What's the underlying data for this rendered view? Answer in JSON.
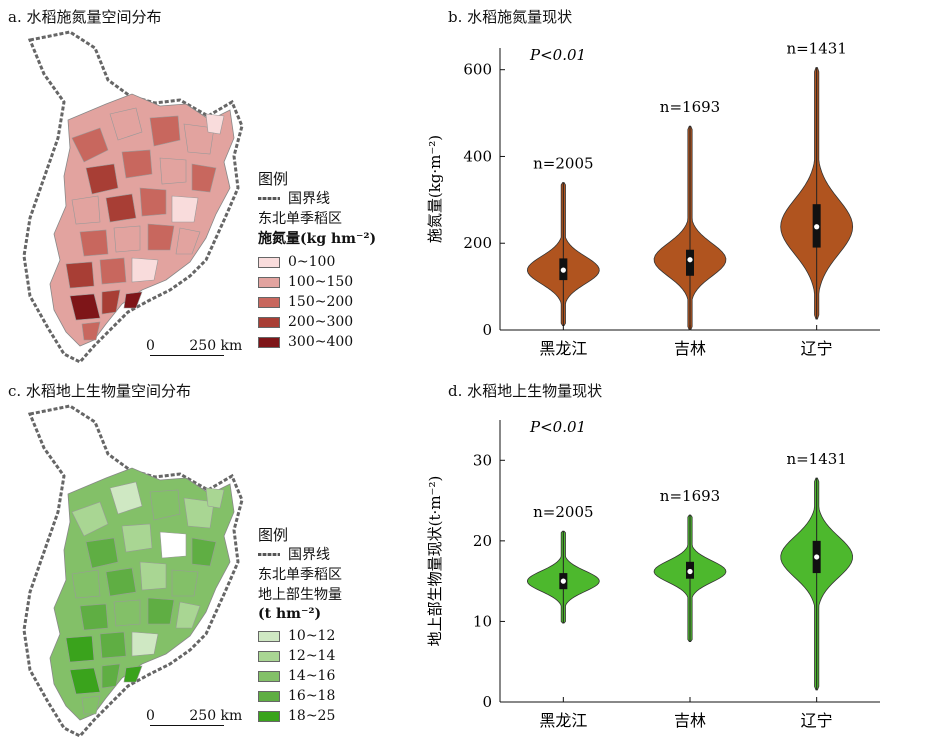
{
  "panels": {
    "a": {
      "title": "a. 水稻施氮量空间分布"
    },
    "b": {
      "title": "b. 水稻施氮量现状"
    },
    "c": {
      "title": "c. 水稻地上生物量空间分布"
    },
    "d": {
      "title": "d. 水稻地上生物量现状"
    }
  },
  "legend_a": {
    "heading": "图例",
    "border_label": "国界线",
    "title_line1": "东北单季稻区",
    "title_line2": "施氮量(kg hm⁻²)",
    "classes": [
      {
        "label": "0~100",
        "color": "#f9dcdc"
      },
      {
        "label": "100~150",
        "color": "#e2a39f"
      },
      {
        "label": "150~200",
        "color": "#c8675e"
      },
      {
        "label": "200~300",
        "color": "#a83e35"
      },
      {
        "label": "300~400",
        "color": "#7e1518"
      }
    ]
  },
  "legend_c": {
    "heading": "图例",
    "border_label": "国界线",
    "title_line1": "东北单季稻区",
    "title_line2": "地上部生物量",
    "title_line3": "(t hm⁻²)",
    "classes": [
      {
        "label": "10~12",
        "color": "#cfe8c3"
      },
      {
        "label": "12~14",
        "color": "#a9d693"
      },
      {
        "label": "14~16",
        "color": "#83c068"
      },
      {
        "label": "16~18",
        "color": "#5fae43"
      },
      {
        "label": "18~25",
        "color": "#3aa31c"
      }
    ]
  },
  "scalebar": {
    "zero": "0",
    "distance": "250 km"
  },
  "chart_data": [
    {
      "type": "violin",
      "panel": "b",
      "ylabel": "施氮量(kg·m⁻²)",
      "ylim": [
        0,
        650
      ],
      "yticks": [
        "0",
        "200",
        "400",
        "600"
      ],
      "significance": "P<0.01",
      "color": "#b0541f",
      "categories": [
        "黑龙江",
        "吉林",
        "辽宁"
      ],
      "n_labels": [
        "n=2005",
        "n=1693",
        "n=1431"
      ],
      "n_values": [
        2005,
        1693,
        1431
      ],
      "median": [
        138,
        162,
        238
      ],
      "q1": [
        115,
        125,
        190
      ],
      "q3": [
        165,
        185,
        290
      ],
      "min": [
        10,
        0,
        25
      ],
      "max": [
        340,
        470,
        605
      ]
    },
    {
      "type": "violin",
      "panel": "d",
      "ylabel": "地上部生物量现状(t·m⁻²)",
      "ylim": [
        0,
        35
      ],
      "yticks": [
        "0",
        "10",
        "20",
        "30"
      ],
      "significance": "P<0.01",
      "color": "#4db82d",
      "categories": [
        "黑龙江",
        "吉林",
        "辽宁"
      ],
      "n_labels": [
        "n=2005",
        "n=1693",
        "n=1431"
      ],
      "n_values": [
        2005,
        1693,
        1431
      ],
      "median": [
        15.0,
        16.2,
        18.0
      ],
      "q1": [
        14.0,
        15.3,
        16.0
      ],
      "q3": [
        16.0,
        17.4,
        20.0
      ],
      "min": [
        9.8,
        7.5,
        1.5
      ],
      "max": [
        21.2,
        23.2,
        27.8
      ]
    }
  ]
}
